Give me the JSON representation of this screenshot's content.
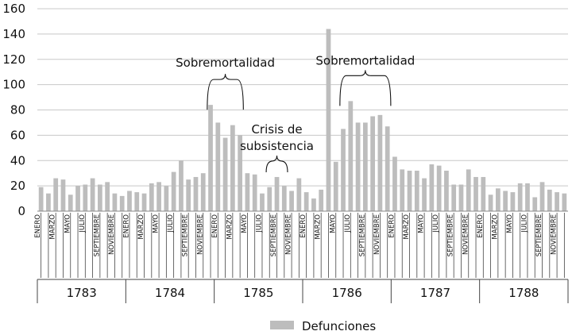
{
  "chart_data": {
    "type": "bar",
    "ylim": [
      0,
      160
    ],
    "y_ticks": [
      "0",
      "20",
      "40",
      "60",
      "80",
      "100",
      "120",
      "140",
      "160"
    ],
    "grid": true,
    "legend_position": "bottom",
    "bar_color": "#bdbdbd",
    "grid_color": "#c8c8c8",
    "years": [
      "1783",
      "1784",
      "1785",
      "1786",
      "1787",
      "1788"
    ],
    "month_labels": [
      "ENERO",
      "",
      "MARZO",
      "",
      "MAYO",
      "",
      "JULIO",
      "",
      "SEPTIEMBRE",
      "",
      "NOVIEMBRE",
      ""
    ],
    "series": [
      {
        "name": "Defunciones",
        "values": [
          19,
          14,
          26,
          25,
          13,
          20,
          21,
          26,
          21,
          23,
          14,
          12,
          16,
          15,
          14,
          22,
          23,
          20,
          31,
          40,
          25,
          27,
          30,
          84,
          70,
          58,
          68,
          60,
          30,
          29,
          14,
          19,
          27,
          20,
          16,
          26,
          15,
          10,
          17,
          144,
          39,
          65,
          87,
          70,
          70,
          75,
          76,
          67,
          43,
          33,
          32,
          32,
          26,
          37,
          36,
          32,
          21,
          21,
          33,
          27,
          27,
          13,
          18,
          16,
          15,
          22,
          22,
          11,
          23,
          17,
          15,
          14
        ]
      }
    ],
    "annotations": [
      {
        "lines": [
          "Sobremortalidad"
        ],
        "from": 23,
        "to": 27
      },
      {
        "lines": [
          "Crisis de",
          "subsistencia"
        ],
        "from": 31,
        "to": 33
      },
      {
        "lines": [
          "Sobremortalidad"
        ],
        "from": 41,
        "to": 47
      }
    ]
  }
}
